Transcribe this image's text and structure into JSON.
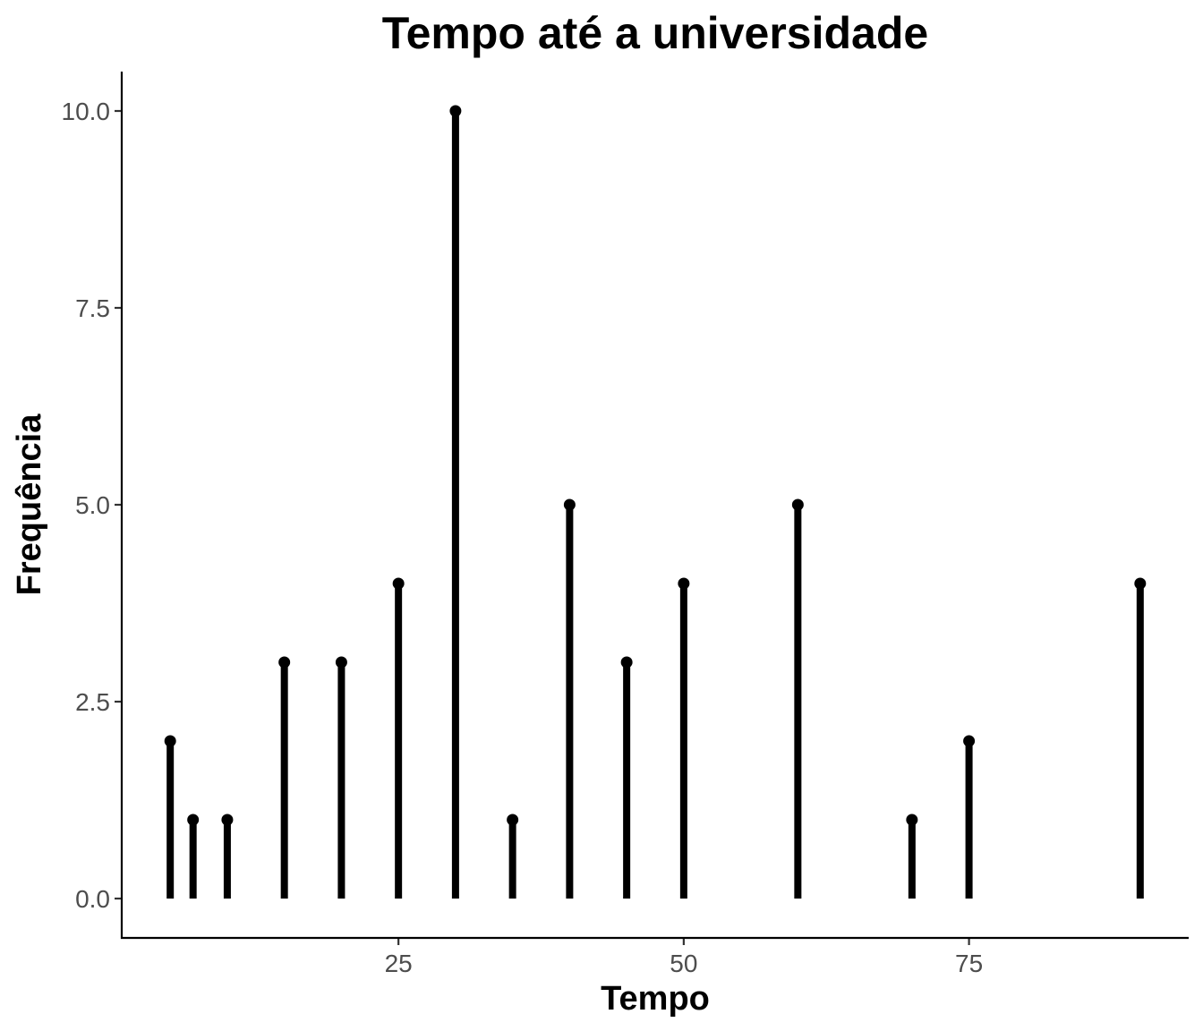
{
  "chart_data": {
    "type": "lollipop",
    "title": "Tempo até a universidade",
    "xlabel": "Tempo",
    "ylabel": "Frequência",
    "x": [
      5,
      7,
      10,
      15,
      20,
      25,
      30,
      35,
      40,
      45,
      50,
      60,
      70,
      75,
      90
    ],
    "y": [
      2,
      1,
      1,
      3,
      3,
      4,
      10,
      1,
      5,
      3,
      4,
      5,
      1,
      2,
      4
    ],
    "xlim": [
      0.75,
      94.25
    ],
    "ylim": [
      -0.5,
      10.5
    ],
    "x_ticks": [
      25,
      50,
      75
    ],
    "x_tick_labels": [
      "25",
      "50",
      "75"
    ],
    "y_ticks": [
      0,
      2.5,
      5,
      7.5,
      10
    ],
    "y_tick_labels": [
      "0.0",
      "2.5",
      "5.0",
      "7.5",
      "10.0"
    ],
    "grid": false,
    "legend": "none",
    "color": "#000000"
  }
}
